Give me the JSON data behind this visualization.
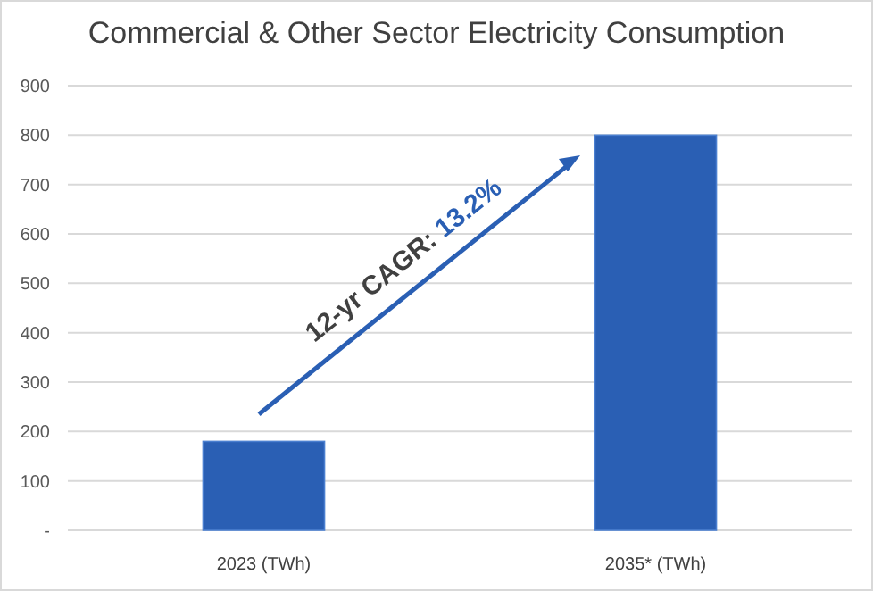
{
  "chart_data": {
    "type": "bar",
    "title": "Commercial & Other Sector Electricity Consumption",
    "categories": [
      "2023 (TWh)",
      "2035* (TWh)"
    ],
    "values": [
      180,
      800
    ],
    "color": "#2a5fb4",
    "ylim": [
      0,
      900
    ],
    "yticks": [
      {
        "value": 0,
        "label": "-"
      },
      100,
      200,
      300,
      400,
      500,
      600,
      700,
      800,
      900
    ],
    "grid": "y",
    "annotations": [
      "12-yr CAGR: 13.2%"
    ]
  }
}
